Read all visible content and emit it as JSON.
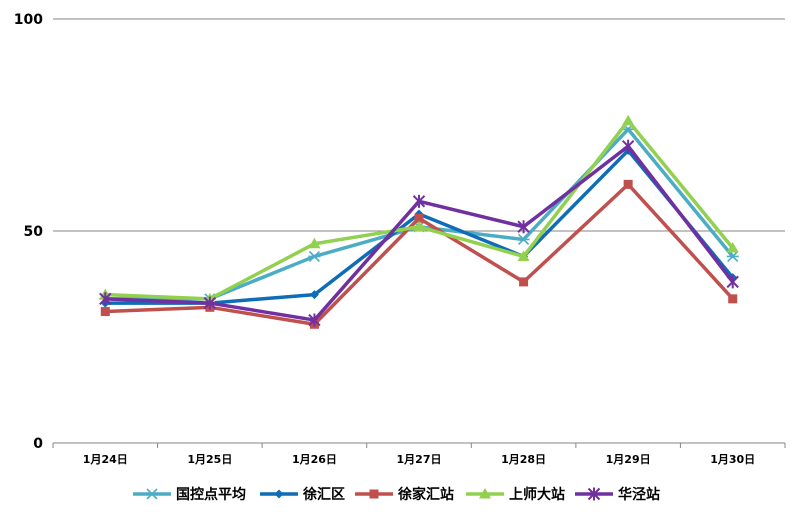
{
  "chart_data": {
    "type": "line",
    "categories": [
      "1月24日",
      "1月25日",
      "1月26日",
      "1月27日",
      "1月28日",
      "1月29日",
      "1月30日"
    ],
    "ylim": [
      0,
      100
    ],
    "yticks": [
      0,
      50,
      100
    ],
    "grid": true,
    "legend_position": "bottom",
    "series": [
      {
        "name": "国控点平均",
        "color": "#4BACC6",
        "marker": "asterisk",
        "values": [
          34,
          34,
          44,
          51,
          48,
          74,
          44
        ]
      },
      {
        "name": "徐汇区",
        "color": "#0F6CB6",
        "marker": "diamond",
        "values": [
          33,
          33,
          35,
          54,
          44,
          69,
          39
        ]
      },
      {
        "name": "徐家汇站",
        "color": "#C0504D",
        "marker": "square",
        "values": [
          31,
          32,
          28,
          53,
          38,
          61,
          34
        ]
      },
      {
        "name": "上师大站",
        "color": "#92D050",
        "marker": "triangle",
        "values": [
          35,
          34,
          47,
          51,
          44,
          76,
          46
        ]
      },
      {
        "name": "华泾站",
        "color": "#7030A0",
        "marker": "star",
        "values": [
          34,
          33,
          29,
          57,
          51,
          70,
          38
        ]
      }
    ]
  }
}
